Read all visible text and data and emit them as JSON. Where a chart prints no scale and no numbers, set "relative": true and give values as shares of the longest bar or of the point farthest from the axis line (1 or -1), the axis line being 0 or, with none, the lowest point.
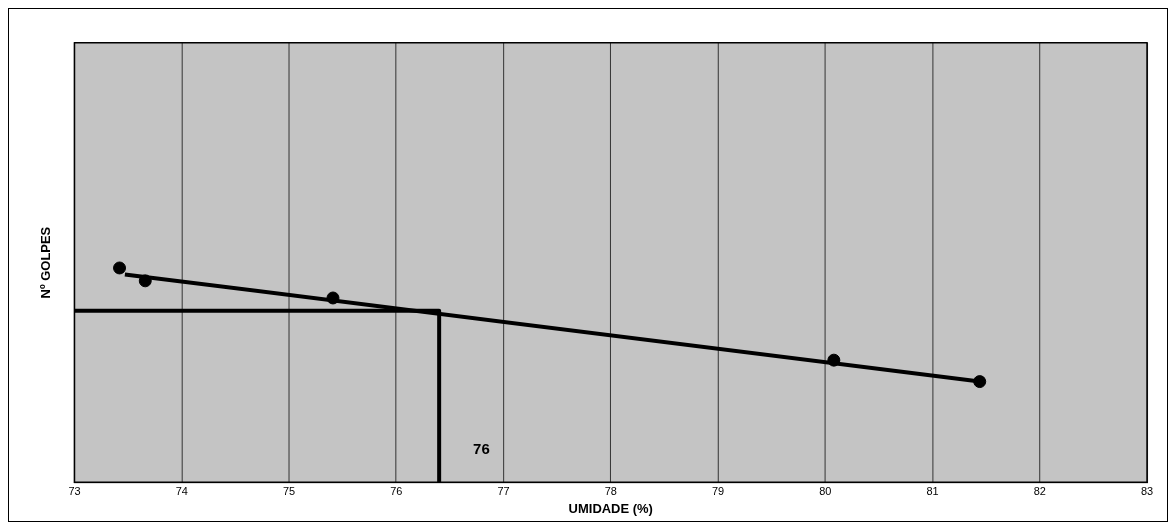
{
  "chart_data": {
    "type": "scatter",
    "xlabel": "UMIDADE (%)",
    "ylabel": "Nº GOLPES",
    "relative": true,
    "xlim": [
      73,
      83
    ],
    "xticks": [
      73,
      74,
      75,
      76,
      77,
      78,
      79,
      80,
      81,
      82,
      83
    ],
    "grid": "x",
    "marker": "circle",
    "legend": false,
    "series": [
      {
        "color": "#000000",
        "x": [
          73.42,
          73.66,
          75.41,
          80.08,
          81.44
        ],
        "values": [
          1.0,
          0.94,
          0.86,
          0.57,
          0.47
        ]
      },
      {
        "type": "line",
        "color": "#000000",
        "marker": "none",
        "x": [
          73.47,
          81.44
        ],
        "values": [
          0.97,
          0.47
        ]
      },
      {
        "type": "line",
        "color": "#000000",
        "marker": "none",
        "x": [
          73,
          76.4,
          76.4
        ],
        "values": [
          0.8,
          0.8,
          0
        ]
      }
    ],
    "annotations": [
      {
        "text": "76",
        "x": 76.4,
        "y": 0.15
      }
    ]
  }
}
